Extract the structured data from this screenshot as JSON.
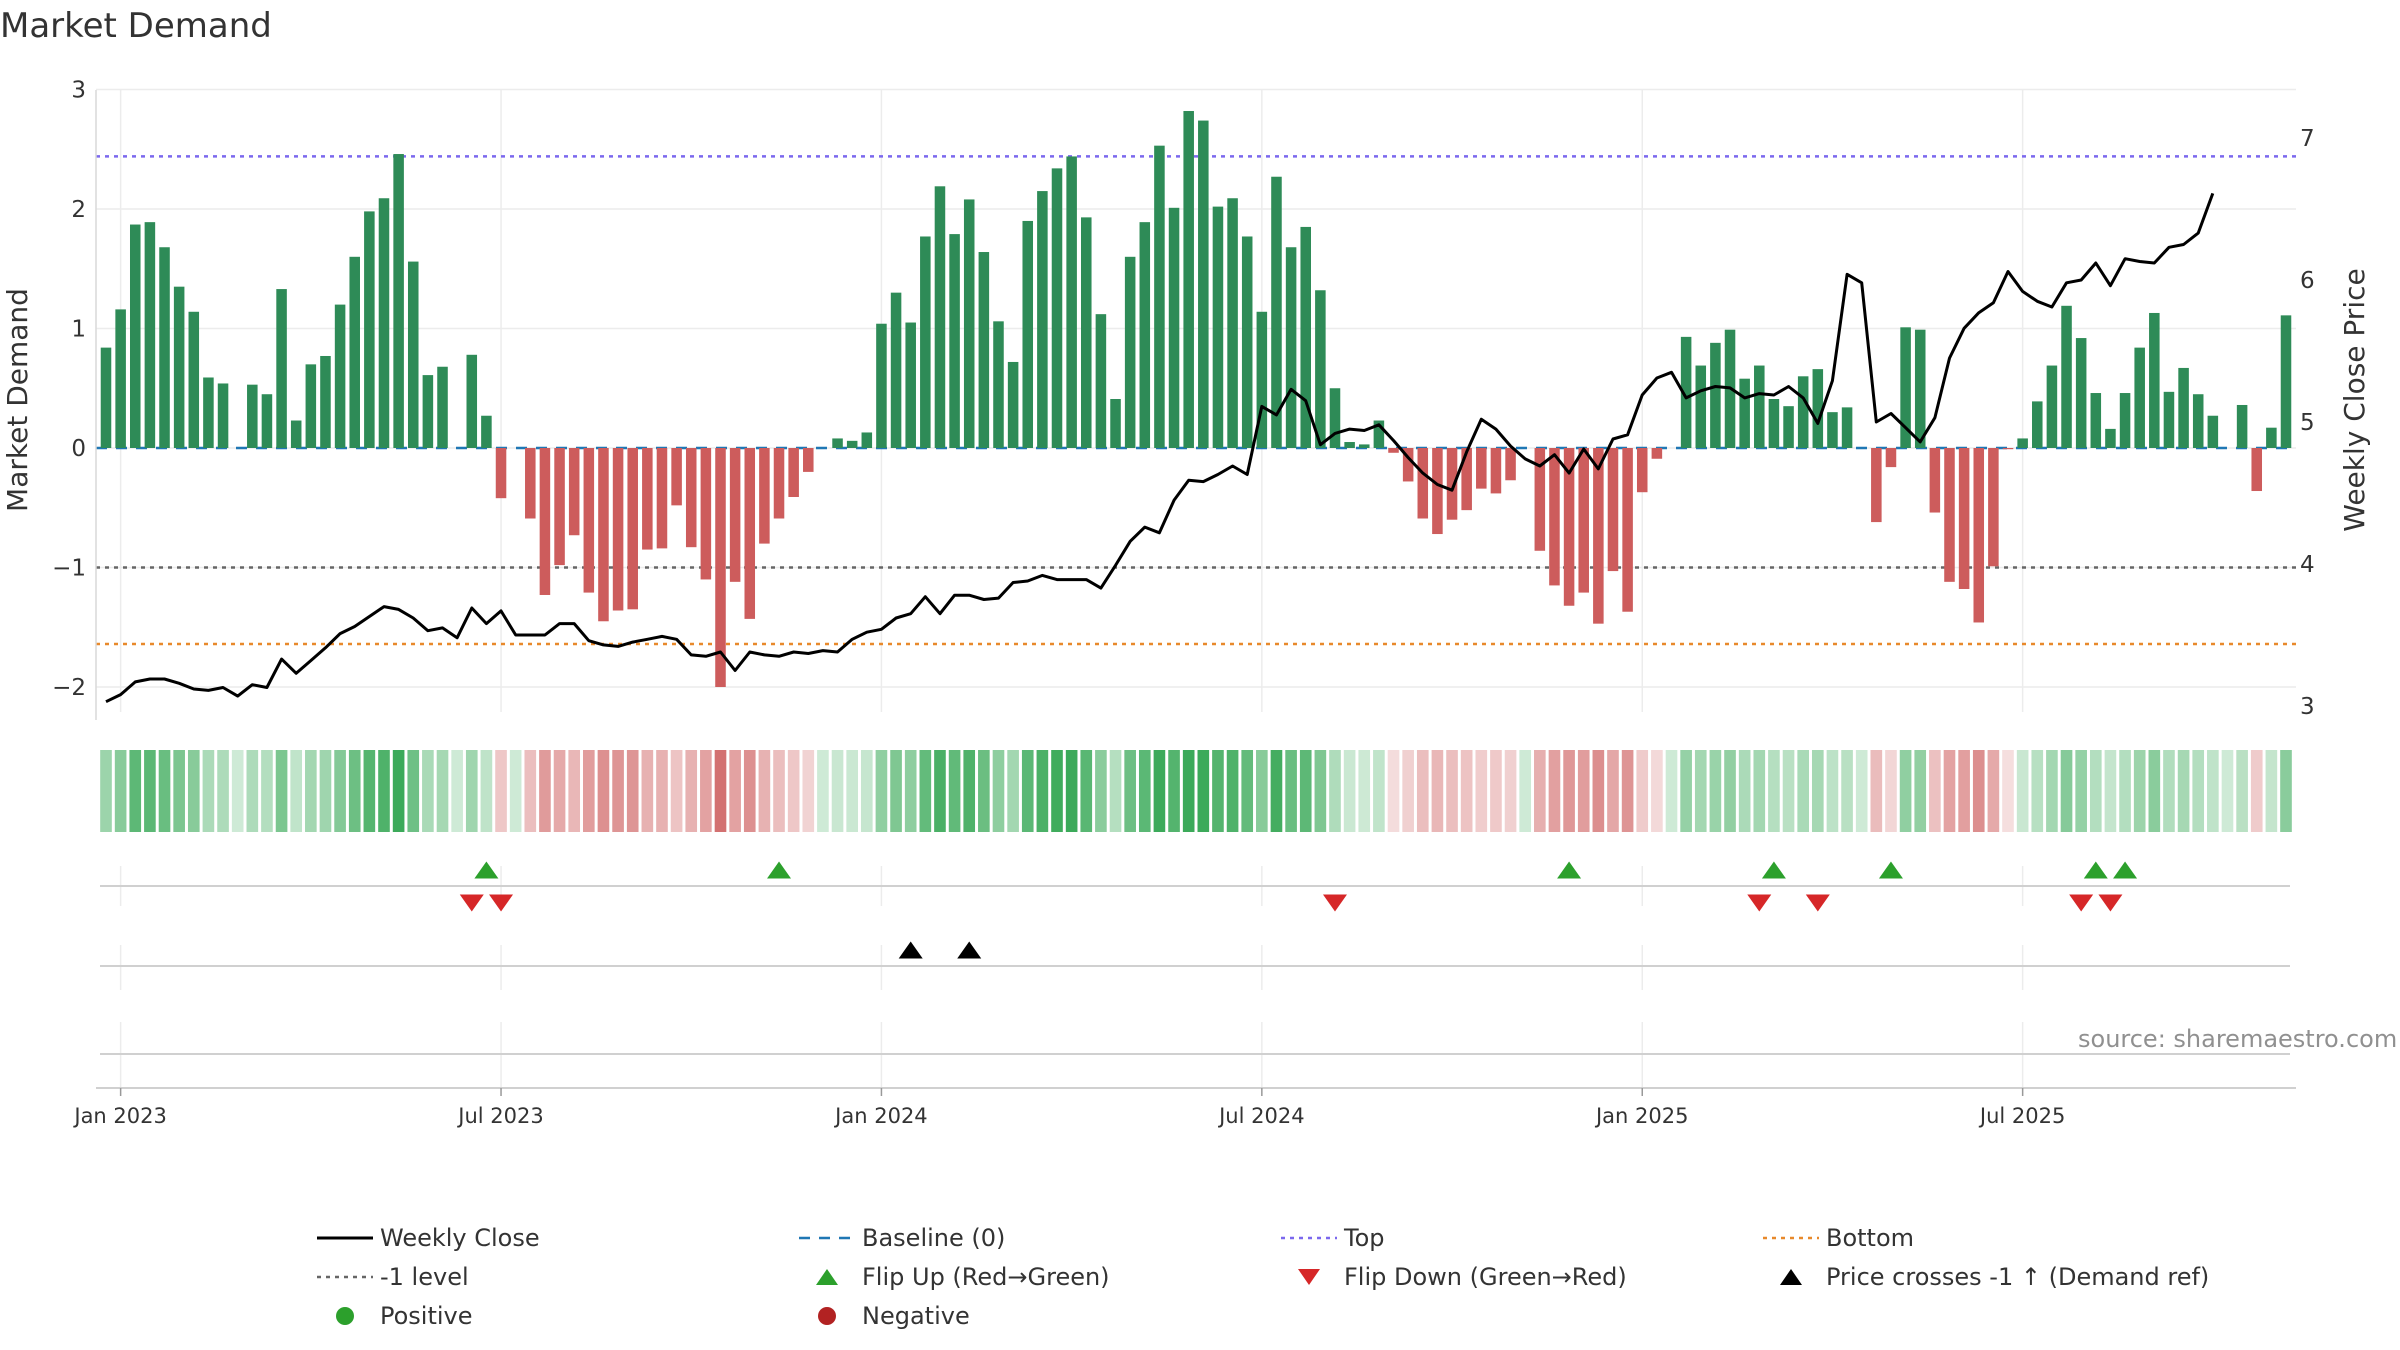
{
  "title": "Market Demand",
  "source": "source: sharemaestro.com",
  "chart_data": {
    "type": "bar+line",
    "title": "Market Demand",
    "ylabel_left": "Market Demand",
    "ylabel_right": "Weekly Close Price",
    "ylim_left": [
      -2.2,
      3
    ],
    "ylim_right": [
      2.9,
      7.4
    ],
    "yticks_left": [
      3,
      2,
      1,
      0,
      -1,
      -2
    ],
    "ytick_labels_left": [
      "3",
      "2",
      "1",
      "0",
      "−1",
      "−2"
    ],
    "yticks_right": [
      7,
      6,
      5,
      4,
      3
    ],
    "ytick_labels_right": [
      "7",
      "6",
      "5",
      "4",
      "3"
    ],
    "xticks": [
      {
        "label": "Jan 2023",
        "index": 1
      },
      {
        "label": "Jul 2023",
        "index": 27
      },
      {
        "label": "Jan 2024",
        "index": 53
      },
      {
        "label": "Jul 2024",
        "index": 79
      },
      {
        "label": "Jan 2025",
        "index": 105
      },
      {
        "label": "Jul 2025",
        "index": 131
      }
    ],
    "reference_lines": [
      {
        "name": "Top",
        "value": 2.44,
        "color": "#7b68ee"
      },
      {
        "name": "-1 level",
        "value": -1.0,
        "color": "#666666"
      },
      {
        "name": "Bottom",
        "value": -1.64,
        "color": "#e8892b"
      },
      {
        "name": "Baseline (0)",
        "value": 0,
        "color": "#1f77b4"
      }
    ],
    "demand": [
      0.84,
      1.16,
      1.87,
      1.89,
      1.68,
      1.35,
      1.14,
      0.59,
      0.54,
      0,
      0.53,
      0.45,
      1.33,
      0.23,
      0.7,
      0.77,
      1.2,
      1.6,
      1.98,
      2.09,
      2.46,
      1.56,
      0.61,
      0.68,
      0,
      0.78,
      0.27,
      -0.42,
      0,
      -0.59,
      -1.23,
      -0.98,
      -0.73,
      -1.21,
      -1.45,
      -1.36,
      -1.35,
      -0.85,
      -0.84,
      -0.48,
      -0.83,
      -1.1,
      -2.0,
      -1.12,
      -1.43,
      -0.8,
      -0.59,
      -0.41,
      -0.2,
      0,
      0.08,
      0.06,
      0.13,
      1.04,
      1.3,
      1.05,
      1.77,
      2.19,
      1.79,
      2.08,
      1.64,
      1.06,
      0.72,
      1.9,
      2.15,
      2.34,
      2.44,
      1.93,
      1.12,
      0.41,
      1.6,
      1.89,
      2.53,
      2.01,
      2.82,
      2.74,
      2.02,
      2.09,
      1.77,
      1.14,
      2.27,
      1.68,
      1.85,
      1.32,
      0.5,
      0.05,
      0.03,
      0.23,
      -0.04,
      -0.28,
      -0.59,
      -0.72,
      -0.6,
      -0.52,
      -0.34,
      -0.38,
      -0.27,
      0,
      -0.86,
      -1.15,
      -1.32,
      -1.21,
      -1.47,
      -1.03,
      -1.37,
      -0.37,
      -0.09,
      0,
      0.93,
      0.69,
      0.88,
      0.99,
      0.58,
      0.69,
      0.41,
      0.35,
      0.6,
      0.66,
      0.3,
      0.34,
      0,
      -0.62,
      -0.16,
      1.01,
      0.99,
      -0.54,
      -1.12,
      -1.18,
      -1.46,
      -0.99,
      -0.01,
      0.08,
      0.39,
      0.69,
      1.19,
      0.92,
      0.46,
      0.16,
      0.46,
      0.84,
      1.13,
      0.47,
      0.67,
      0.45,
      0.27,
      0,
      0.36,
      -0.36,
      0.17,
      1.11
    ],
    "weekly_close": [
      3.03,
      3.08,
      3.17,
      3.19,
      3.19,
      3.16,
      3.12,
      3.11,
      3.13,
      3.07,
      3.15,
      3.13,
      3.33,
      3.23,
      3.32,
      3.41,
      3.51,
      3.56,
      3.63,
      3.7,
      3.68,
      3.62,
      3.53,
      3.55,
      3.48,
      3.69,
      3.58,
      3.67,
      3.5,
      3.5,
      3.5,
      3.58,
      3.58,
      3.46,
      3.43,
      3.42,
      3.45,
      3.47,
      3.49,
      3.47,
      3.36,
      3.35,
      3.38,
      3.25,
      3.38,
      3.36,
      3.35,
      3.38,
      3.37,
      3.39,
      3.38,
      3.47,
      3.52,
      3.54,
      3.62,
      3.65,
      3.77,
      3.65,
      3.78,
      3.78,
      3.75,
      3.76,
      3.87,
      3.88,
      3.92,
      3.89,
      3.89,
      3.89,
      3.83,
      3.99,
      4.16,
      4.26,
      4.22,
      4.45,
      4.59,
      4.58,
      4.63,
      4.69,
      4.63,
      5.11,
      5.05,
      5.23,
      5.15,
      4.84,
      4.92,
      4.95,
      4.94,
      4.98,
      4.87,
      4.75,
      4.64,
      4.56,
      4.52,
      4.79,
      5.02,
      4.95,
      4.83,
      4.74,
      4.69,
      4.77,
      4.64,
      4.81,
      4.67,
      4.88,
      4.91,
      5.19,
      5.31,
      5.35,
      5.17,
      5.22,
      5.25,
      5.24,
      5.17,
      5.2,
      5.19,
      5.25,
      5.17,
      4.99,
      5.29,
      6.04,
      5.98,
      5.0,
      5.06,
      4.96,
      4.86,
      5.03,
      5.45,
      5.66,
      5.77,
      5.84,
      6.06,
      5.92,
      5.85,
      5.81,
      5.98,
      6.0,
      6.12,
      5.96,
      6.15,
      6.13,
      6.12,
      6.23,
      6.25,
      6.33,
      6.61
    ]
  },
  "markers": {
    "flip_up_indices": [
      26,
      46,
      100,
      114,
      122,
      136,
      138
    ],
    "flip_down_indices": [
      25,
      27,
      84,
      113,
      117,
      135,
      137
    ],
    "price_cross_indices": [
      55,
      59
    ]
  },
  "legend": [
    {
      "key": "weekly_close",
      "label": "Weekly Close",
      "color": "#000000"
    },
    {
      "key": "baseline",
      "label": "Baseline (0)",
      "color": "#1f77b4"
    },
    {
      "key": "top",
      "label": "Top",
      "color": "#7b68ee"
    },
    {
      "key": "bottom",
      "label": "Bottom",
      "color": "#e8892b"
    },
    {
      "key": "minus1",
      "label": "-1 level",
      "color": "#666666"
    },
    {
      "key": "flip_up",
      "label": "Flip Up (Red→Green)",
      "color": "#2ca02c"
    },
    {
      "key": "flip_down",
      "label": "Flip Down (Green→Red)",
      "color": "#d62728"
    },
    {
      "key": "price_cross",
      "label": "Price crosses -1 ↑ (Demand ref)",
      "color": "#000000"
    },
    {
      "key": "positive",
      "label": "Positive",
      "color": "#2ca02c"
    },
    {
      "key": "negative",
      "label": "Negative",
      "color": "#b22222"
    }
  ],
  "colors": {
    "positive_bar": "#2e8b57",
    "negative_bar": "#cd5c5c",
    "grid": "#e6e6e6"
  }
}
